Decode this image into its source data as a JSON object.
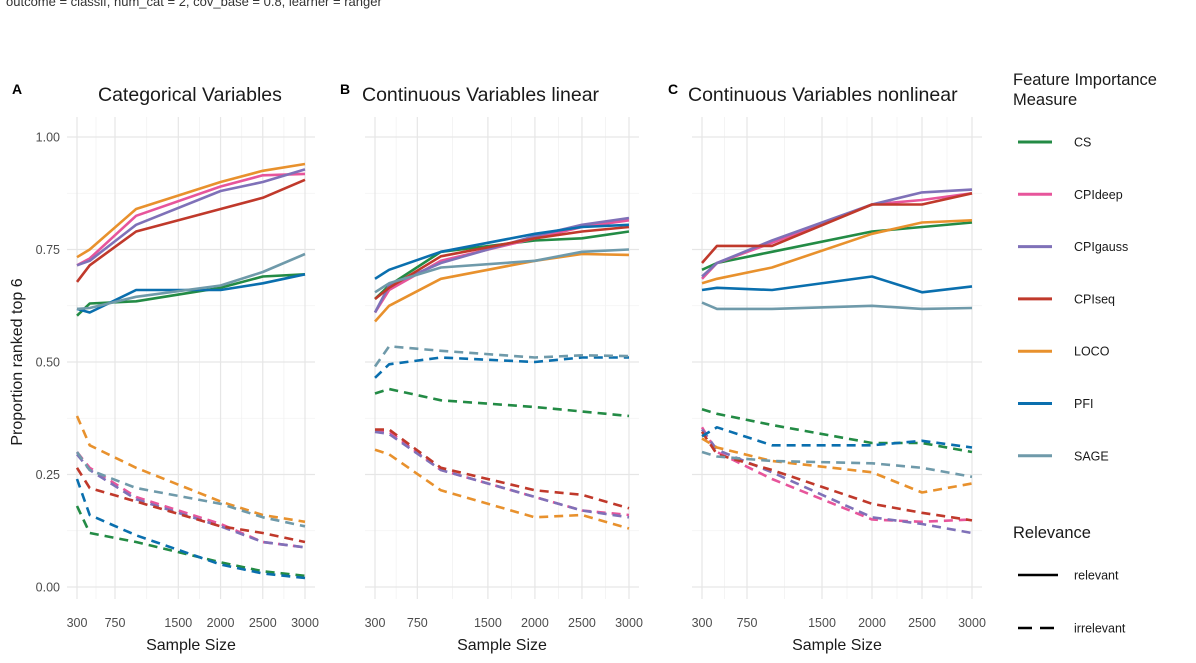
{
  "caption": "outcome = classif, num_cat = 2, cov_base = 0.8, learner = ranger",
  "shared": {
    "xlabel": "Sample Size",
    "ylabel": "Proportion ranked top 6",
    "x_ticks": [
      300,
      750,
      1500,
      2000,
      2500,
      3000
    ],
    "y_ticks": [
      0.0,
      0.25,
      0.5,
      0.75,
      1.0
    ],
    "y_tick_labels": [
      "0.00",
      "0.25",
      "0.50",
      "0.75",
      "1.00"
    ],
    "xlim": [
      300,
      3000
    ],
    "ylim": [
      0.0,
      1.0
    ]
  },
  "legend": {
    "importance_title": "Feature Importance Measure",
    "importance_title_lines": [
      "Feature Importance",
      "Measure"
    ],
    "measures": [
      {
        "name": "CS",
        "color": "#238b45"
      },
      {
        "name": "CPIdeep",
        "color": "#e7559b"
      },
      {
        "name": "CPIgauss",
        "color": "#7f71b8"
      },
      {
        "name": "CPIseq",
        "color": "#c0392b"
      },
      {
        "name": "LOCO",
        "color": "#e8912d"
      },
      {
        "name": "PFI",
        "color": "#0a6fae"
      },
      {
        "name": "SAGE",
        "color": "#6f9aaa"
      }
    ],
    "relevance_title": "Relevance",
    "relevance": [
      {
        "name": "relevant",
        "dash": "solid"
      },
      {
        "name": "irrelevant",
        "dash": "dashed"
      }
    ]
  },
  "chart_data": [
    {
      "type": "line",
      "panel": "A",
      "title": "Categorical Variables",
      "xlabel": "Sample Size",
      "ylabel": "Proportion ranked top 6",
      "x": [
        300,
        450,
        1000,
        2000,
        2500,
        3000
      ],
      "series": [
        {
          "name": "CS",
          "relevance": "relevant",
          "values": [
            0.603,
            0.63,
            0.635,
            0.665,
            0.69,
            0.695
          ]
        },
        {
          "name": "CPIdeep",
          "relevance": "relevant",
          "values": [
            0.715,
            0.73,
            0.825,
            0.89,
            0.915,
            0.918
          ]
        },
        {
          "name": "CPIgauss",
          "relevance": "relevant",
          "values": [
            0.715,
            0.725,
            0.805,
            0.88,
            0.9,
            0.928
          ]
        },
        {
          "name": "CPIseq",
          "relevance": "relevant",
          "values": [
            0.678,
            0.715,
            0.79,
            0.84,
            0.865,
            0.905
          ]
        },
        {
          "name": "LOCO",
          "relevance": "relevant",
          "values": [
            0.733,
            0.75,
            0.84,
            0.9,
            0.925,
            0.94
          ]
        },
        {
          "name": "PFI",
          "relevance": "relevant",
          "values": [
            0.618,
            0.61,
            0.66,
            0.66,
            0.675,
            0.695
          ]
        },
        {
          "name": "SAGE",
          "relevance": "relevant",
          "values": [
            0.618,
            0.62,
            0.645,
            0.67,
            0.7,
            0.74
          ]
        },
        {
          "name": "CS",
          "relevance": "irrelevant",
          "values": [
            0.18,
            0.12,
            0.1,
            0.055,
            0.035,
            0.025
          ]
        },
        {
          "name": "CPIdeep",
          "relevance": "irrelevant",
          "values": [
            0.3,
            0.265,
            0.2,
            0.14,
            0.1,
            0.088
          ]
        },
        {
          "name": "CPIgauss",
          "relevance": "irrelevant",
          "values": [
            0.295,
            0.26,
            0.195,
            0.135,
            0.1,
            0.088
          ]
        },
        {
          "name": "CPIseq",
          "relevance": "irrelevant",
          "values": [
            0.265,
            0.22,
            0.19,
            0.135,
            0.12,
            0.1
          ]
        },
        {
          "name": "LOCO",
          "relevance": "irrelevant",
          "values": [
            0.38,
            0.315,
            0.265,
            0.19,
            0.16,
            0.145
          ]
        },
        {
          "name": "PFI",
          "relevance": "irrelevant",
          "values": [
            0.24,
            0.16,
            0.115,
            0.05,
            0.03,
            0.02
          ]
        },
        {
          "name": "SAGE",
          "relevance": "irrelevant",
          "values": [
            0.3,
            0.26,
            0.22,
            0.185,
            0.155,
            0.135
          ]
        }
      ]
    },
    {
      "type": "line",
      "panel": "B",
      "title": "Continuous Variables linear",
      "xlabel": "Sample Size",
      "ylabel": "Proportion ranked top 6",
      "x": [
        300,
        450,
        1000,
        2000,
        2500,
        3000
      ],
      "series": [
        {
          "name": "CS",
          "relevance": "relevant",
          "values": [
            0.64,
            0.67,
            0.745,
            0.77,
            0.775,
            0.79
          ]
        },
        {
          "name": "CPIdeep",
          "relevance": "relevant",
          "values": [
            0.61,
            0.66,
            0.725,
            0.775,
            0.8,
            0.815
          ]
        },
        {
          "name": "CPIgauss",
          "relevance": "relevant",
          "values": [
            0.61,
            0.67,
            0.72,
            0.78,
            0.805,
            0.82
          ]
        },
        {
          "name": "CPIseq",
          "relevance": "relevant",
          "values": [
            0.64,
            0.665,
            0.735,
            0.775,
            0.79,
            0.8
          ]
        },
        {
          "name": "LOCO",
          "relevance": "relevant",
          "values": [
            0.59,
            0.625,
            0.685,
            0.725,
            0.74,
            0.738
          ]
        },
        {
          "name": "PFI",
          "relevance": "relevant",
          "values": [
            0.685,
            0.705,
            0.745,
            0.785,
            0.8,
            0.805
          ]
        },
        {
          "name": "SAGE",
          "relevance": "relevant",
          "values": [
            0.655,
            0.675,
            0.71,
            0.725,
            0.745,
            0.75
          ]
        },
        {
          "name": "CS",
          "relevance": "irrelevant",
          "values": [
            0.43,
            0.44,
            0.415,
            0.4,
            0.39,
            0.38
          ]
        },
        {
          "name": "CPIdeep",
          "relevance": "irrelevant",
          "values": [
            0.345,
            0.345,
            0.26,
            0.2,
            0.17,
            0.16
          ]
        },
        {
          "name": "CPIgauss",
          "relevance": "irrelevant",
          "values": [
            0.345,
            0.34,
            0.26,
            0.2,
            0.17,
            0.155
          ]
        },
        {
          "name": "CPIseq",
          "relevance": "irrelevant",
          "values": [
            0.35,
            0.35,
            0.265,
            0.215,
            0.205,
            0.175
          ]
        },
        {
          "name": "LOCO",
          "relevance": "irrelevant",
          "values": [
            0.305,
            0.295,
            0.215,
            0.155,
            0.16,
            0.13
          ]
        },
        {
          "name": "PFI",
          "relevance": "irrelevant",
          "values": [
            0.465,
            0.495,
            0.51,
            0.5,
            0.51,
            0.51
          ]
        },
        {
          "name": "SAGE",
          "relevance": "irrelevant",
          "values": [
            0.49,
            0.535,
            0.525,
            0.51,
            0.515,
            0.513
          ]
        }
      ]
    },
    {
      "type": "line",
      "panel": "C",
      "title": "Continuous Variables nonlinear",
      "xlabel": "Sample Size",
      "ylabel": "Proportion ranked top 6",
      "x": [
        300,
        450,
        1000,
        2000,
        2500,
        3000
      ],
      "series": [
        {
          "name": "CS",
          "relevance": "relevant",
          "values": [
            0.705,
            0.72,
            0.745,
            0.79,
            0.8,
            0.81
          ]
        },
        {
          "name": "CPIdeep",
          "relevance": "relevant",
          "values": [
            0.685,
            0.72,
            0.765,
            0.85,
            0.86,
            0.875
          ]
        },
        {
          "name": "CPIgauss",
          "relevance": "relevant",
          "values": [
            0.69,
            0.72,
            0.77,
            0.85,
            0.877,
            0.883
          ]
        },
        {
          "name": "CPIseq",
          "relevance": "relevant",
          "values": [
            0.72,
            0.758,
            0.758,
            0.85,
            0.85,
            0.875
          ]
        },
        {
          "name": "LOCO",
          "relevance": "relevant",
          "values": [
            0.675,
            0.685,
            0.71,
            0.785,
            0.81,
            0.815
          ]
        },
        {
          "name": "PFI",
          "relevance": "relevant",
          "values": [
            0.66,
            0.665,
            0.66,
            0.69,
            0.655,
            0.668
          ]
        },
        {
          "name": "SAGE",
          "relevance": "relevant",
          "values": [
            0.632,
            0.618,
            0.618,
            0.625,
            0.618,
            0.62
          ]
        },
        {
          "name": "CS",
          "relevance": "irrelevant",
          "values": [
            0.395,
            0.385,
            0.36,
            0.32,
            0.32,
            0.3
          ]
        },
        {
          "name": "CPIdeep",
          "relevance": "irrelevant",
          "values": [
            0.355,
            0.3,
            0.24,
            0.15,
            0.145,
            0.15
          ]
        },
        {
          "name": "CPIgauss",
          "relevance": "irrelevant",
          "values": [
            0.35,
            0.305,
            0.255,
            0.155,
            0.14,
            0.12
          ]
        },
        {
          "name": "CPIseq",
          "relevance": "irrelevant",
          "values": [
            0.345,
            0.295,
            0.26,
            0.185,
            0.165,
            0.148
          ]
        },
        {
          "name": "LOCO",
          "relevance": "irrelevant",
          "values": [
            0.33,
            0.31,
            0.28,
            0.255,
            0.21,
            0.23
          ]
        },
        {
          "name": "PFI",
          "relevance": "irrelevant",
          "values": [
            0.335,
            0.355,
            0.315,
            0.315,
            0.325,
            0.31
          ]
        },
        {
          "name": "SAGE",
          "relevance": "irrelevant",
          "values": [
            0.3,
            0.29,
            0.28,
            0.275,
            0.265,
            0.245
          ]
        }
      ]
    }
  ]
}
